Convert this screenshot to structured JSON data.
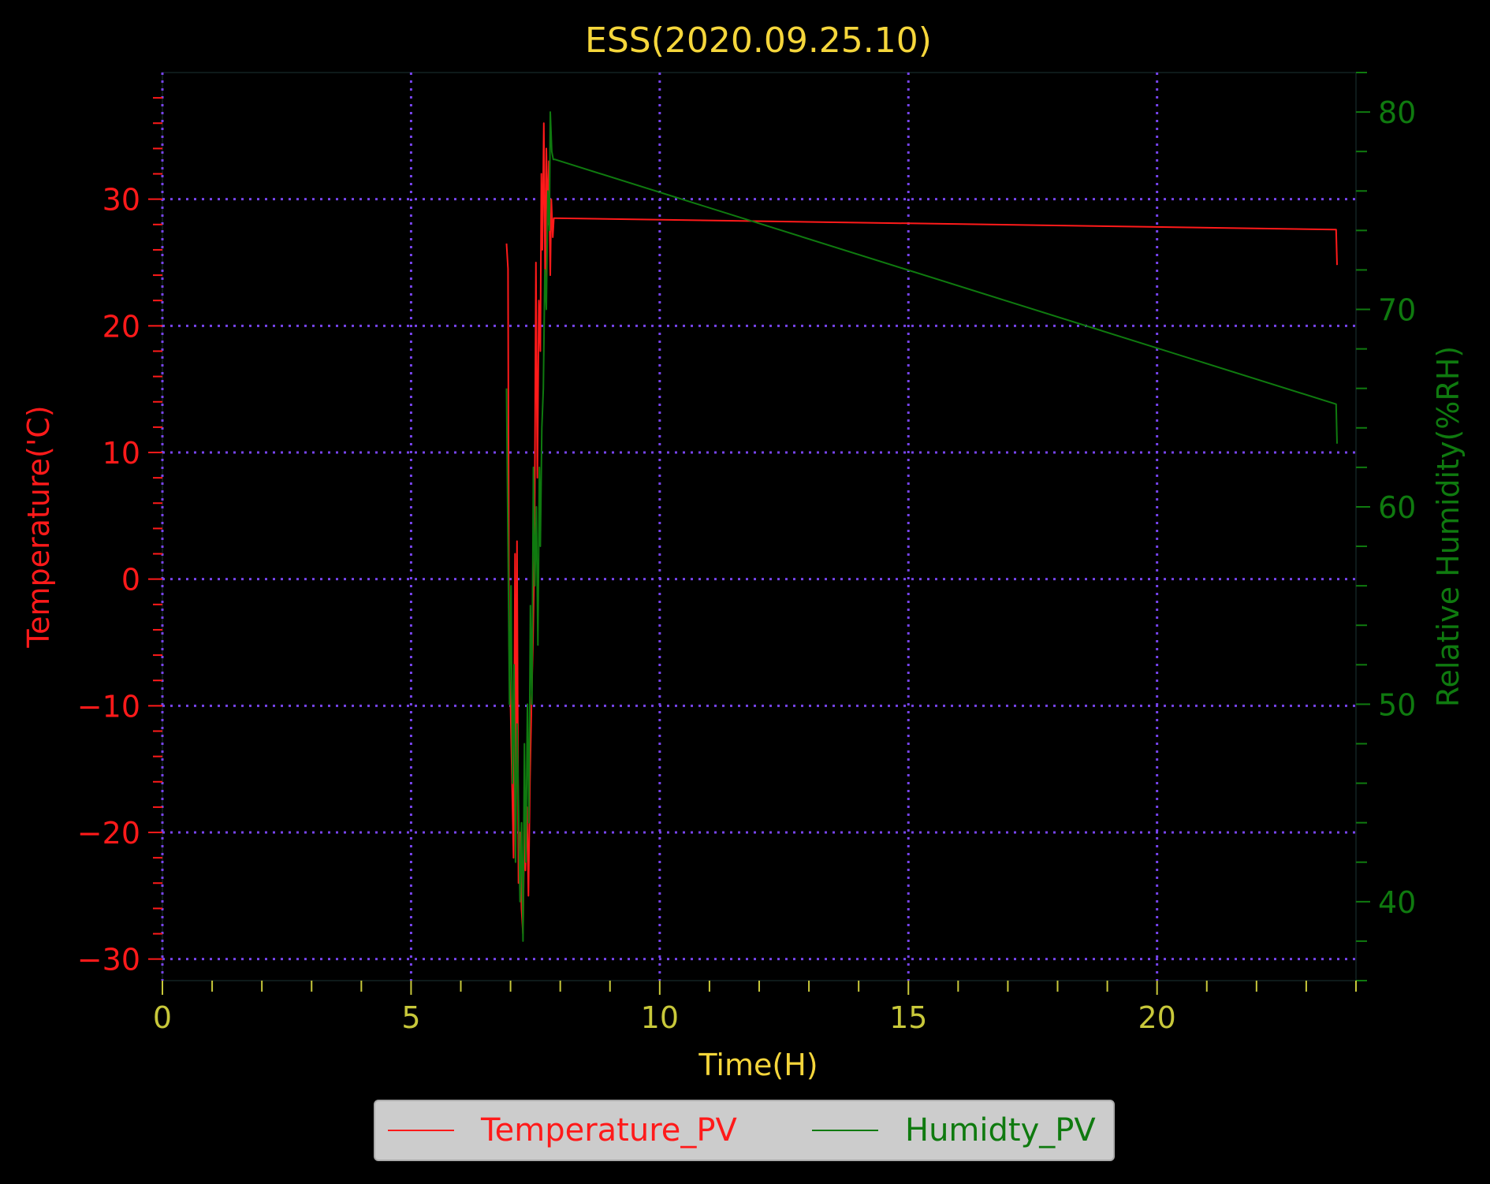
{
  "chart_data": {
    "type": "line",
    "title": "ESS(2020.09.25.10)",
    "xlabel": "Time(H)",
    "ylabel_left": "Temperature('C)",
    "ylabel_right": "Relative Humidity(%RH)",
    "xlim": [
      0,
      24
    ],
    "ylim_left": [
      -31.7,
      40
    ],
    "ylim_right": [
      36.0,
      82.0
    ],
    "xticks": [
      0,
      5,
      10,
      15,
      20
    ],
    "yticks_left": [
      -30,
      -20,
      -10,
      0,
      10,
      20,
      30
    ],
    "yticks_right": [
      40,
      50,
      60,
      70,
      80
    ],
    "grid": true,
    "legend_position": "bottom-center",
    "colors": {
      "background": "#000000",
      "title": "#f5d63b",
      "x_axis": "#c8c83a",
      "temperature": "#ff1a1a",
      "humidity": "#0f7a0f",
      "grid": "#7744ee",
      "legend_bg": "#cccccc"
    },
    "series": [
      {
        "name": "Temperature_PV",
        "axis": "left",
        "x": [
          6.92,
          6.95,
          6.97,
          7.0,
          7.03,
          7.06,
          7.09,
          7.11,
          7.13,
          7.16,
          7.19,
          7.22,
          7.25,
          7.28,
          7.3,
          7.33,
          7.36,
          7.39,
          7.42,
          7.45,
          7.48,
          7.51,
          7.54,
          7.57,
          7.6,
          7.62,
          7.64,
          7.67,
          7.7,
          7.72,
          7.75,
          7.77,
          7.8,
          7.82,
          7.85,
          7.87,
          7.9,
          23.6,
          23.62
        ],
        "y": [
          26.5,
          24.5,
          -5,
          -10,
          -16,
          -22,
          2,
          -18,
          3,
          -24,
          -20,
          -26,
          -28,
          -19,
          -23,
          -18,
          -25,
          -16,
          -10,
          -5,
          2,
          25,
          8,
          22,
          18,
          32,
          26,
          36,
          22,
          34,
          28,
          33,
          24,
          30,
          27,
          28.5,
          28.5,
          27.6,
          24.8
        ]
      },
      {
        "name": "Humidty_PV",
        "axis": "right",
        "x": [
          6.92,
          6.95,
          6.98,
          7.01,
          7.04,
          7.07,
          7.1,
          7.13,
          7.16,
          7.19,
          7.22,
          7.25,
          7.28,
          7.31,
          7.34,
          7.37,
          7.4,
          7.43,
          7.46,
          7.49,
          7.52,
          7.55,
          7.58,
          7.6,
          7.63,
          7.66,
          7.69,
          7.72,
          7.75,
          7.78,
          7.8,
          7.83,
          7.86,
          7.89,
          23.6,
          23.62
        ],
        "y": [
          66,
          58,
          50,
          56,
          46,
          52,
          42,
          49,
          45,
          40,
          44,
          38,
          48,
          42,
          50,
          44,
          55,
          50,
          62,
          56,
          60,
          53,
          62,
          58,
          64,
          66,
          72,
          70,
          76,
          74,
          80,
          78,
          77.6,
          77.6,
          65.2,
          63.2
        ]
      }
    ]
  }
}
